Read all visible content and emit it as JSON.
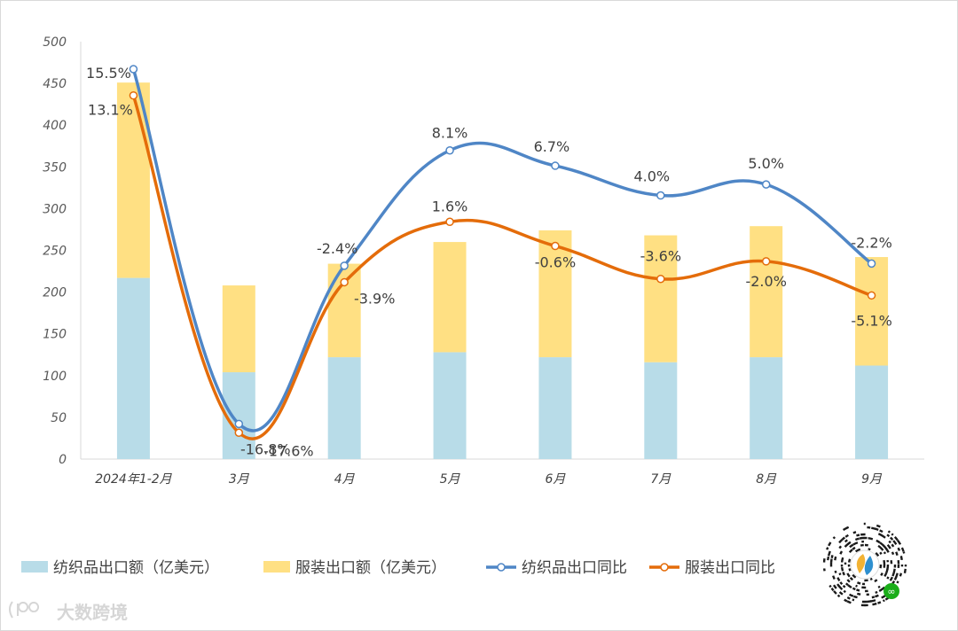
{
  "chart_data": {
    "type": "bar+line",
    "categories": [
      "2024年1-2月",
      "3月",
      "4月",
      "5月",
      "6月",
      "7月",
      "8月",
      "9月"
    ],
    "bar_series": [
      {
        "name": "纺织品出口额（亿美元）",
        "values": [
          217,
          104,
          122,
          128,
          122,
          116,
          122,
          112
        ],
        "color": "#b8dce8"
      },
      {
        "name": "服装出口额（亿美元）",
        "values": [
          234,
          104,
          112,
          132,
          152,
          152,
          157,
          130
        ],
        "color": "#ffe083"
      }
    ],
    "line_series": [
      {
        "name": "纺织品出口同比",
        "values": [
          15.5,
          -16.8,
          -2.4,
          8.1,
          6.7,
          4.0,
          5.0,
          -2.2
        ],
        "labels": [
          "15.5%",
          "-16.8%",
          "-2.4%",
          "8.1%",
          "6.7%",
          "4.0%",
          "5.0%",
          "-2.2%"
        ],
        "color": "#4f86c6"
      },
      {
        "name": "服装出口同比",
        "values": [
          13.1,
          -17.6,
          -3.9,
          1.6,
          -0.6,
          -3.6,
          -2.0,
          -5.1
        ],
        "labels": [
          "13.1%",
          "-17.6%",
          "-3.9%",
          "1.6%",
          "-0.6%",
          "-3.6%",
          "-2.0%",
          "-5.1%"
        ],
        "color": "#e46c0a"
      }
    ],
    "y_axis": {
      "min": 0,
      "max": 500,
      "step": 50,
      "ticks": [
        "0",
        "50",
        "100",
        "150",
        "200",
        "250",
        "300",
        "350",
        "400",
        "450",
        "500"
      ]
    },
    "secondary_axis_range": [
      -20,
      18
    ],
    "legend_position": "bottom-left",
    "grid": false
  },
  "watermark": {
    "brand": "大数跨境",
    "logo_glyph": "e00"
  },
  "qr_code": {
    "icon": "qr-code-icon",
    "badge_glyph": "∞"
  }
}
